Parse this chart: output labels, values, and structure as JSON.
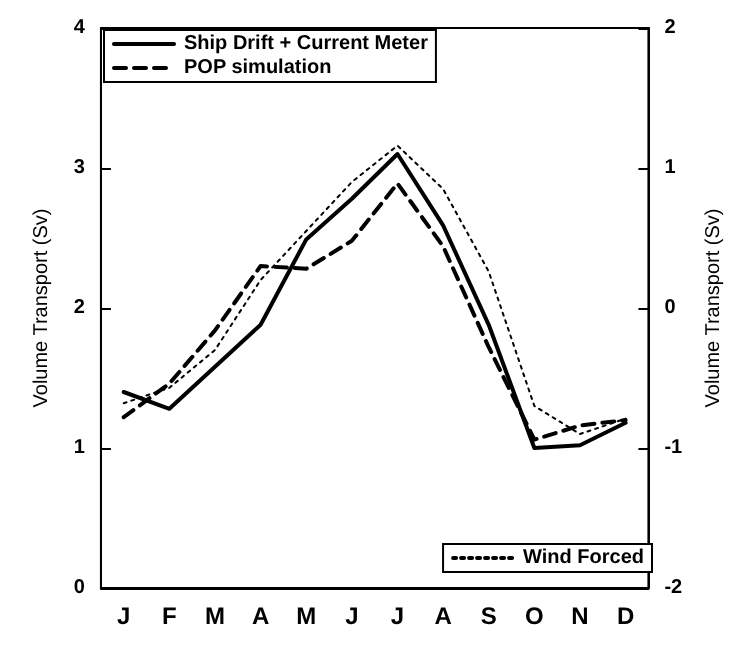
{
  "chart_data": {
    "type": "line",
    "ylabel": "Volume Transport (Sv)",
    "y2label": "Volume Transport (Sv)",
    "categories": [
      "J",
      "F",
      "M",
      "A",
      "M",
      "J",
      "J",
      "A",
      "S",
      "O",
      "N",
      "D"
    ],
    "series": [
      {
        "name": "Ship Drift + Current Meter",
        "color": "#000000",
        "line_style": "solid",
        "values": [
          1.4,
          1.28,
          1.58,
          1.88,
          2.49,
          2.78,
          3.1,
          2.59,
          1.88,
          1.0,
          1.02,
          1.18
        ]
      },
      {
        "name": "POP simulation",
        "color": "#000000",
        "line_style": "dashed",
        "values": [
          1.22,
          1.46,
          1.84,
          2.3,
          2.28,
          2.48,
          2.89,
          2.44,
          1.72,
          1.06,
          1.16,
          1.2
        ]
      },
      {
        "name": "Wind Forced",
        "color": "#000000",
        "line_style": "dotted",
        "axis": "y2",
        "values": [
          -0.68,
          -0.57,
          -0.3,
          0.2,
          0.55,
          0.9,
          1.16,
          0.85,
          0.26,
          -0.7,
          -0.9,
          -0.79
        ]
      }
    ],
    "ylim": [
      0,
      4
    ],
    "yticks": [
      0,
      1,
      2,
      3,
      4
    ],
    "y2lim": [
      -2,
      2
    ],
    "y2ticks": [
      -2,
      -1,
      0,
      1,
      2
    ],
    "grid": false,
    "legend": "top left",
    "marker": "none"
  }
}
